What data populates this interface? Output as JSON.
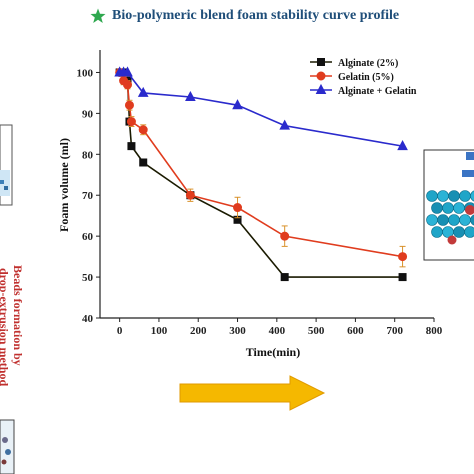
{
  "header": {
    "title": "Bio-polymeric blend foam stability curve profile",
    "title_icon": "green-star-icon"
  },
  "side_label": {
    "line1": "Beads formation by",
    "line2": "drop-extrusion method",
    "color": "#c0302e"
  },
  "chart_data": {
    "type": "line",
    "xlabel": "Time(min)",
    "ylabel": "Foam volume  (ml)",
    "xlim": [
      -50,
      800
    ],
    "ylim": [
      40,
      105
    ],
    "xticks": [
      0,
      100,
      200,
      300,
      400,
      500,
      600,
      700,
      800
    ],
    "yticks": [
      40,
      50,
      60,
      70,
      80,
      90,
      100
    ],
    "grid": false,
    "legend_position": "top-right",
    "series": [
      {
        "name": "Alginate (2%)",
        "color": "#1a1a00",
        "marker": "square",
        "x": [
          0,
          10,
          20,
          25,
          30,
          60,
          180,
          300,
          420,
          720
        ],
        "y": [
          100,
          100,
          98,
          88,
          82,
          78,
          70,
          64,
          50,
          50
        ]
      },
      {
        "name": "Gelatin (5%)",
        "color": "#e03c1e",
        "marker": "circle",
        "x": [
          0,
          10,
          20,
          25,
          30,
          60,
          180,
          300,
          420,
          720
        ],
        "y": [
          100,
          98,
          97,
          92,
          88,
          86,
          70,
          67,
          60,
          55
        ],
        "error": [
          0,
          1,
          1,
          1.2,
          1.2,
          1.2,
          1.5,
          2.5,
          2.5,
          2.5
        ]
      },
      {
        "name": "Alginate + Gelatin",
        "color": "#2a2acc",
        "marker": "triangle",
        "x": [
          0,
          10,
          20,
          60,
          180,
          300,
          420,
          720
        ],
        "y": [
          100,
          100,
          100,
          95,
          94,
          92,
          87,
          82
        ]
      }
    ]
  },
  "decor": {
    "arrow_color": "#f5b800",
    "arrow_edge": "#e09a00"
  }
}
